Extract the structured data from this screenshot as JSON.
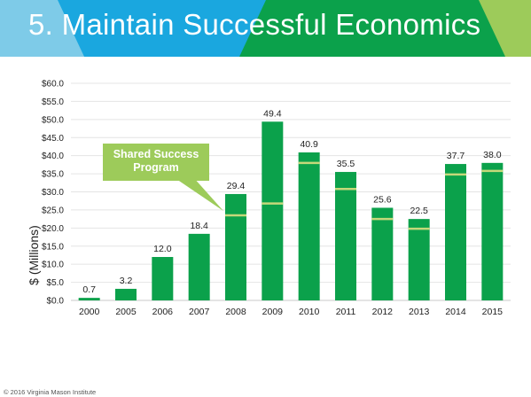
{
  "slide": {
    "title": "5. Maintain Successful Economics",
    "callout_text": "Shared Success\nProgram",
    "copyright": "© 2016 Virginia Mason Institute"
  },
  "colors": {
    "bar": "#0ba14b",
    "target_line": "#c5d87a",
    "banner_light_blue": "#7ecbe8",
    "banner_blue": "#1aa7df",
    "banner_green": "#0ba14b",
    "banner_lime": "#9dcb5a",
    "callout": "#9dcb5a"
  },
  "chart_data": {
    "type": "bar",
    "title": "",
    "xlabel": "",
    "ylabel": "$ (Millions)",
    "ylim": [
      0,
      60
    ],
    "yticks": [
      "$0.0",
      "$5.0",
      "$10.0",
      "$15.0",
      "$20.0",
      "$25.0",
      "$30.0",
      "$35.0",
      "$40.0",
      "$45.0",
      "$50.0",
      "$55.0",
      "$60.0"
    ],
    "grid": true,
    "categories": [
      "2000",
      "2005",
      "2006",
      "2007",
      "2008",
      "2009",
      "2010",
      "2011",
      "2012",
      "2013",
      "2014",
      "2015"
    ],
    "values": [
      0.7,
      3.2,
      12.0,
      18.4,
      29.4,
      49.4,
      40.9,
      35.5,
      25.6,
      22.5,
      37.7,
      38.0
    ],
    "data_labels": [
      "0.7",
      "3.2",
      "12.0",
      "18.4",
      "29.4",
      "49.4",
      "40.9",
      "35.5",
      "25.6",
      "22.5",
      "37.7",
      "38.0"
    ],
    "target_markers": [
      null,
      null,
      null,
      null,
      23.5,
      26.8,
      38.0,
      30.8,
      22.5,
      19.8,
      34.8,
      35.8
    ],
    "annotation": "Shared Success Program"
  }
}
